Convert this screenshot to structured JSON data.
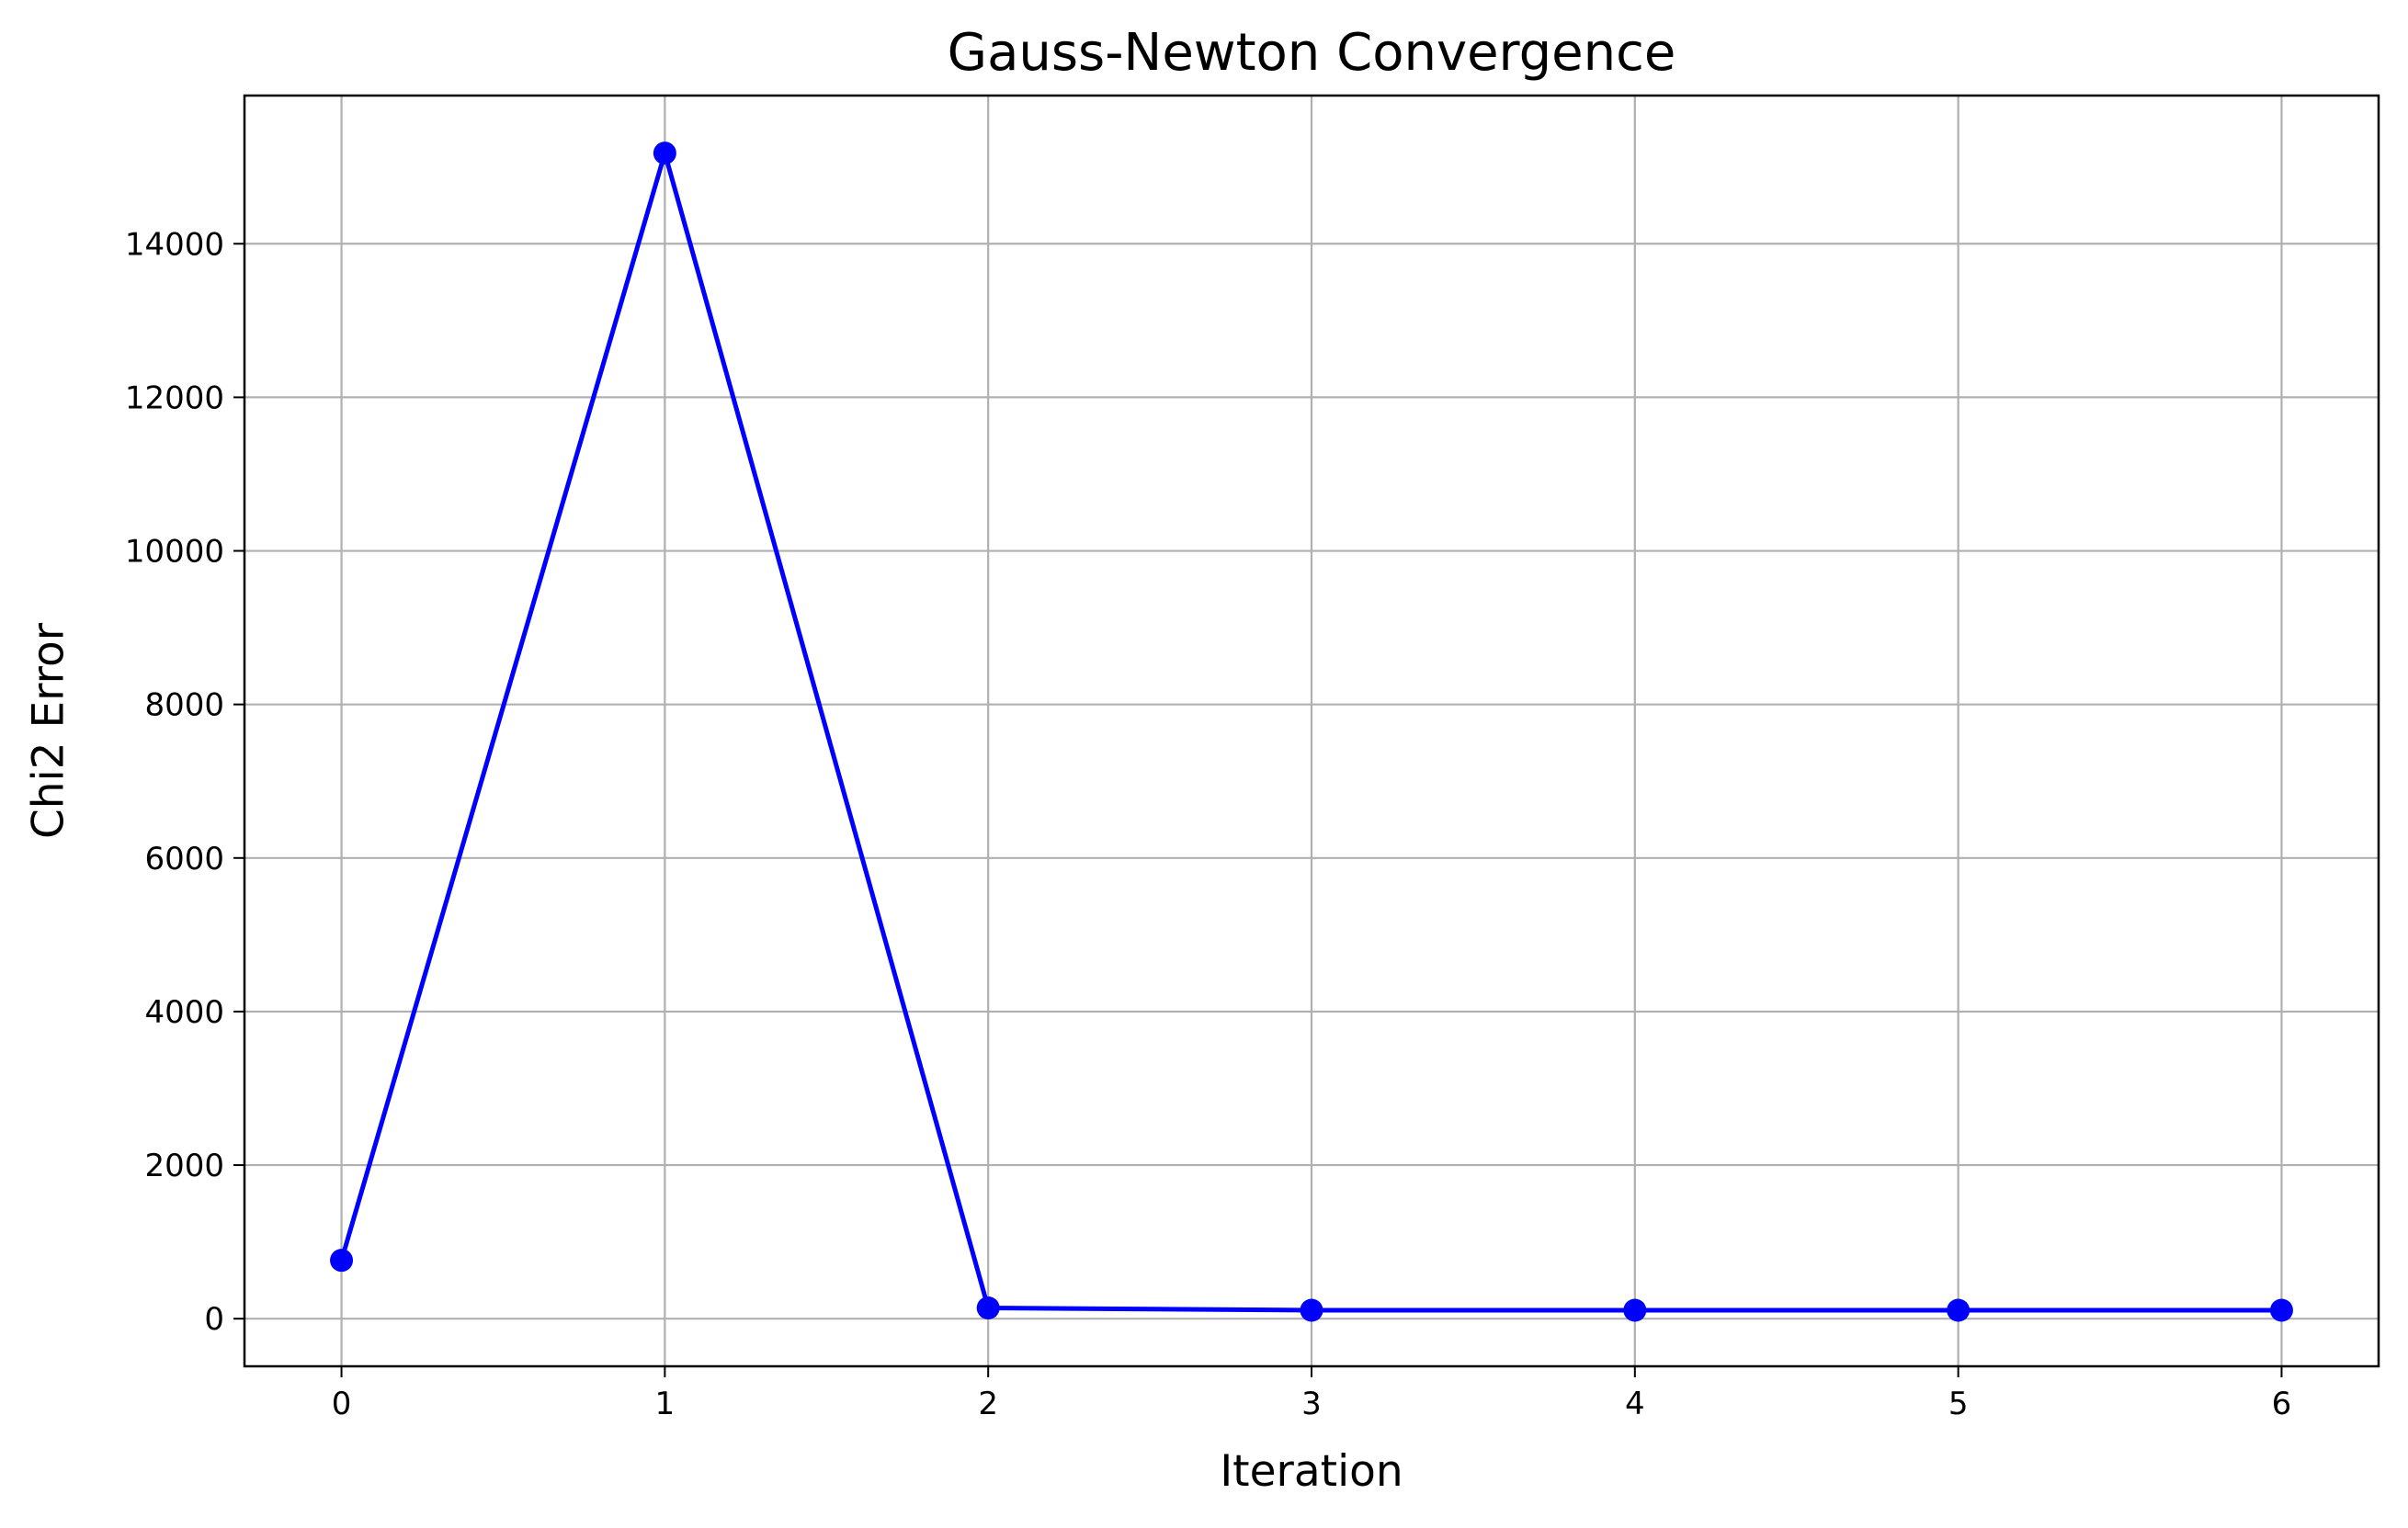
{
  "chart_data": {
    "type": "line",
    "title": "Gauss-Newton Convergence",
    "xlabel": "Iteration",
    "ylabel": "Chi2 Error",
    "x": [
      0,
      1,
      2,
      3,
      4,
      5,
      6
    ],
    "series": [
      {
        "values": [
          760,
          15180,
          140,
          110,
          110,
          110,
          110
        ]
      }
    ],
    "xlim": [
      -0.3,
      6.3
    ],
    "ylim": [
      -620,
      15930
    ],
    "xticks": [
      0,
      1,
      2,
      3,
      4,
      5,
      6
    ],
    "xtick_labels": [
      "0",
      "1",
      "2",
      "3",
      "4",
      "5",
      "6"
    ],
    "yticks": [
      0,
      2000,
      4000,
      6000,
      8000,
      10000,
      12000,
      14000
    ],
    "ytick_labels": [
      "0",
      "2000",
      "4000",
      "6000",
      "8000",
      "10000",
      "12000",
      "14000"
    ],
    "grid": true,
    "line_color": "#0000ff",
    "marker": "circle"
  }
}
